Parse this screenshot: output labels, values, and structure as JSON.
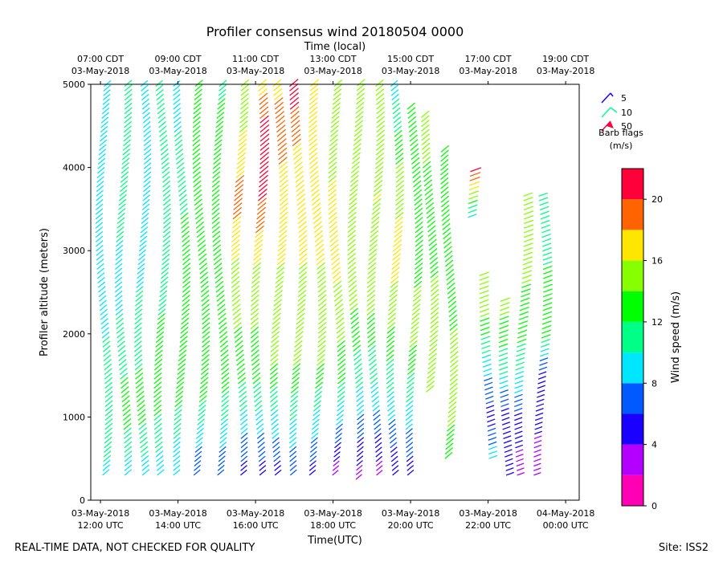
{
  "chart_data": {
    "type": "wind-barb-profile",
    "title": "Profiler consensus wind 20180504 0000",
    "top_axis_label": "Time (local)",
    "top_ticks": [
      {
        "time_line1": "07:00 CDT",
        "time_line2": "03-May-2018",
        "utc_hour": 12
      },
      {
        "time_line1": "09:00 CDT",
        "time_line2": "03-May-2018",
        "utc_hour": 14
      },
      {
        "time_line1": "11:00 CDT",
        "time_line2": "03-May-2018",
        "utc_hour": 16
      },
      {
        "time_line1": "13:00 CDT",
        "time_line2": "03-May-2018",
        "utc_hour": 18
      },
      {
        "time_line1": "15:00 CDT",
        "time_line2": "03-May-2018",
        "utc_hour": 20
      },
      {
        "time_line1": "17:00 CDT",
        "time_line2": "03-May-2018",
        "utc_hour": 22
      },
      {
        "time_line1": "19:00 CDT",
        "time_line2": "03-May-2018",
        "utc_hour": 24
      }
    ],
    "xlabel": "Time(UTC)",
    "bottom_ticks": [
      {
        "date": "03-May-2018",
        "time": "12:00 UTC",
        "utc_hour": 12
      },
      {
        "date": "03-May-2018",
        "time": "14:00 UTC",
        "utc_hour": 14
      },
      {
        "date": "03-May-2018",
        "time": "16:00 UTC",
        "utc_hour": 16
      },
      {
        "date": "03-May-2018",
        "time": "18:00 UTC",
        "utc_hour": 18
      },
      {
        "date": "03-May-2018",
        "time": "20:00 UTC",
        "utc_hour": 20
      },
      {
        "date": "03-May-2018",
        "time": "22:00 UTC",
        "utc_hour": 22
      },
      {
        "date": "04-May-2018",
        "time": "00:00 UTC",
        "utc_hour": 24
      }
    ],
    "xlim": [
      11.75,
      24.35
    ],
    "ylabel": "Profiler altitude (meters)",
    "ylim": [
      0,
      5000
    ],
    "yticks": [
      0,
      1000,
      2000,
      3000,
      4000,
      5000
    ],
    "barb_legend": {
      "entries": [
        "5",
        "10",
        "50"
      ],
      "colors": [
        "#1a00ff",
        "#00ff9a",
        "#ff003a"
      ],
      "caption_line1": "Barb flags",
      "caption_line2": "(m/s)"
    },
    "colorbar": {
      "label": "Wind speed (m/s)",
      "min": 0,
      "max": 22,
      "bounds": [
        0,
        2,
        4,
        6,
        8,
        10,
        12,
        14,
        16,
        18,
        20,
        22
      ],
      "colors": [
        "#ff00b4",
        "#b400ff",
        "#1a00ff",
        "#005aff",
        "#00e6ff",
        "#00ff87",
        "#00ff00",
        "#87ff00",
        "#ffe600",
        "#ff6400",
        "#ff003a"
      ],
      "ticks": [
        0,
        4,
        8,
        12,
        16,
        20
      ]
    },
    "profiles": [
      {
        "time": 12.0,
        "top": 5000,
        "speed_by_level": [
          [
            300,
            9
          ],
          [
            700,
            12
          ],
          [
            1500,
            11
          ],
          [
            2300,
            9
          ],
          [
            3300,
            9
          ],
          [
            4300,
            10
          ],
          [
            5000,
            9
          ]
        ],
        "direction_hint": "SW"
      },
      {
        "time": 12.5,
        "top": 5000,
        "speed_by_level": [
          [
            300,
            9
          ],
          [
            1000,
            13
          ],
          [
            1800,
            11
          ],
          [
            2600,
            9
          ],
          [
            3600,
            11
          ],
          [
            5000,
            12
          ]
        ],
        "direction_hint": "SW"
      },
      {
        "time": 13.0,
        "top": 5000,
        "speed_by_level": [
          [
            300,
            9
          ],
          [
            1100,
            13
          ],
          [
            2000,
            11
          ],
          [
            3000,
            9
          ],
          [
            4000,
            10
          ],
          [
            5000,
            9
          ]
        ],
        "direction_hint": "SW"
      },
      {
        "time": 13.5,
        "top": 5000,
        "speed_by_level": [
          [
            300,
            9
          ],
          [
            1200,
            13
          ],
          [
            2200,
            12
          ],
          [
            3200,
            11
          ],
          [
            4200,
            11
          ],
          [
            5000,
            10
          ]
        ],
        "direction_hint": "SW"
      },
      {
        "time": 14.0,
        "top": 5000,
        "speed_by_level": [
          [
            300,
            8
          ],
          [
            1300,
            13
          ],
          [
            2400,
            13
          ],
          [
            3400,
            12
          ],
          [
            4400,
            10
          ],
          [
            5000,
            9
          ]
        ],
        "direction_hint": "SW"
      },
      {
        "time": 14.5,
        "top": 5000,
        "speed_by_level": [
          [
            300,
            6
          ],
          [
            1300,
            13
          ],
          [
            2400,
            13
          ],
          [
            3600,
            13
          ],
          [
            4600,
            12
          ],
          [
            5000,
            13
          ]
        ],
        "direction_hint": "SW"
      },
      {
        "time": 15.0,
        "top": 5000,
        "speed_by_level": [
          [
            300,
            6
          ],
          [
            1400,
            13
          ],
          [
            2600,
            13
          ],
          [
            3800,
            12
          ],
          [
            4800,
            12
          ],
          [
            5000,
            11
          ]
        ],
        "direction_hint": "SW"
      },
      {
        "time": 15.5,
        "top": 5000,
        "speed_by_level": [
          [
            300,
            5
          ],
          [
            1500,
            13
          ],
          [
            2600,
            15
          ],
          [
            3600,
            19
          ],
          [
            4400,
            16
          ],
          [
            5000,
            15
          ]
        ],
        "direction_hint": "SW"
      },
      {
        "time": 16.0,
        "top": 5000,
        "speed_by_level": [
          [
            300,
            5
          ],
          [
            1500,
            13
          ],
          [
            2600,
            15
          ],
          [
            3600,
            20
          ],
          [
            4400,
            21
          ],
          [
            5000,
            17
          ]
        ],
        "direction_hint": "SW"
      },
      {
        "time": 16.5,
        "top": 5000,
        "speed_by_level": [
          [
            300,
            5
          ],
          [
            1600,
            14
          ],
          [
            2800,
            16
          ],
          [
            3800,
            17
          ],
          [
            4400,
            20
          ],
          [
            5000,
            17
          ]
        ],
        "direction_hint": "SW"
      },
      {
        "time": 17.0,
        "top": 5000,
        "speed_by_level": [
          [
            300,
            6
          ],
          [
            1600,
            14
          ],
          [
            2800,
            16
          ],
          [
            3800,
            16
          ],
          [
            4700,
            20
          ],
          [
            5000,
            20
          ]
        ],
        "direction_hint": "SW"
      },
      {
        "time": 17.5,
        "top": 5000,
        "speed_by_level": [
          [
            300,
            5
          ],
          [
            1600,
            14
          ],
          [
            2800,
            16
          ],
          [
            3800,
            17
          ],
          [
            4800,
            17
          ],
          [
            5000,
            17
          ]
        ],
        "direction_hint": "SW"
      },
      {
        "time": 18.0,
        "top": 5000,
        "speed_by_level": [
          [
            300,
            3
          ],
          [
            1500,
            13
          ],
          [
            2600,
            16
          ],
          [
            3800,
            16
          ],
          [
            5000,
            15
          ]
        ],
        "direction_hint": "SW"
      },
      {
        "time": 18.5,
        "top": 5000,
        "speed_by_level": [
          [
            250,
            3
          ],
          [
            1300,
            10
          ],
          [
            2500,
            15
          ],
          [
            3800,
            15
          ],
          [
            5000,
            15
          ]
        ],
        "direction_hint": "SW"
      },
      {
        "time": 19.0,
        "top": 5000,
        "speed_by_level": [
          [
            300,
            3
          ],
          [
            1200,
            9
          ],
          [
            2400,
            15
          ],
          [
            3600,
            16
          ],
          [
            5000,
            15
          ]
        ],
        "direction_hint": "SW"
      },
      {
        "time": 19.5,
        "top": 5000,
        "speed_by_level": [
          [
            300,
            4
          ],
          [
            1100,
            9
          ],
          [
            2200,
            15
          ],
          [
            3000,
            17
          ],
          [
            4000,
            14
          ],
          [
            5000,
            9
          ]
        ],
        "direction_hint": "SW"
      },
      {
        "time": 20.0,
        "top": 4700,
        "speed_by_level": [
          [
            300,
            5
          ],
          [
            1000,
            9
          ],
          [
            2000,
            15
          ],
          [
            3000,
            13
          ],
          [
            4000,
            14
          ],
          [
            4700,
            13
          ]
        ],
        "direction_hint": "SW"
      },
      {
        "time": 20.4,
        "top": 4600,
        "speed_by_level": [
          [
            1300,
            15
          ],
          [
            2000,
            16
          ],
          [
            3000,
            13
          ],
          [
            4000,
            14
          ],
          [
            4600,
            15
          ]
        ],
        "direction_hint": "SW"
      },
      {
        "time": 20.9,
        "top": 4200,
        "speed_by_level": [
          [
            500,
            13
          ],
          [
            1200,
            15
          ],
          [
            2000,
            14
          ],
          [
            3000,
            13
          ],
          [
            4200,
            14
          ]
        ],
        "direction_hint": "SW"
      },
      {
        "time": 21.6,
        "top": 4000,
        "speed_by_level": [
          [
            3400,
            9
          ],
          [
            3700,
            16
          ],
          [
            4000,
            22
          ]
        ],
        "direction_hint": "W"
      },
      {
        "time": 21.9,
        "top": 2700,
        "speed_by_level": [
          [
            500,
            9
          ],
          [
            1000,
            5
          ],
          [
            1600,
            9
          ],
          [
            2200,
            14
          ],
          [
            2700,
            14
          ]
        ],
        "direction_hint": "W"
      },
      {
        "time": 22.4,
        "top": 2400,
        "speed_by_level": [
          [
            300,
            5
          ],
          [
            1000,
            5
          ],
          [
            1600,
            11
          ],
          [
            2400,
            15
          ]
        ],
        "direction_hint": "W"
      },
      {
        "time": 22.8,
        "top": 3700,
        "speed_by_level": [
          [
            300,
            3
          ],
          [
            900,
            5
          ],
          [
            1400,
            9
          ],
          [
            2000,
            13
          ],
          [
            2600,
            14
          ],
          [
            3600,
            14
          ]
        ],
        "direction_hint": "W"
      },
      {
        "time": 23.3,
        "top": 3700,
        "speed_by_level": [
          [
            300,
            2
          ],
          [
            1000,
            5
          ],
          [
            1500,
            5
          ],
          [
            2000,
            13
          ],
          [
            3600,
            11
          ]
        ],
        "direction_hint": "W"
      }
    ]
  },
  "footer": {
    "left": "REAL-TIME DATA, NOT CHECKED FOR QUALITY",
    "right": "Site: ISS2"
  }
}
